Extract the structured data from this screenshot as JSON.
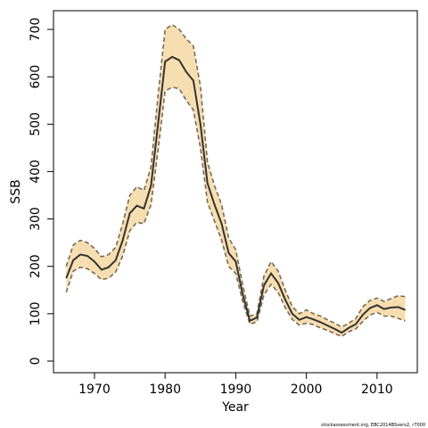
{
  "chart_data": {
    "type": "line",
    "xlabel": "Year",
    "ylabel": "SSB",
    "annotation": "stockassessment.org, EBC2014BSvers2, r7000",
    "x": [
      1966,
      1967,
      1968,
      1969,
      1970,
      1971,
      1972,
      1973,
      1974,
      1975,
      1976,
      1977,
      1978,
      1979,
      1980,
      1981,
      1982,
      1983,
      1984,
      1985,
      1986,
      1987,
      1988,
      1989,
      1990,
      1991,
      1992,
      1993,
      1994,
      1995,
      1996,
      1997,
      1998,
      1999,
      2000,
      2001,
      2002,
      2003,
      2004,
      2005,
      2006,
      2007,
      2008,
      2009,
      2010,
      2011,
      2012,
      2013,
      2014
    ],
    "values": [
      175,
      213,
      225,
      222,
      210,
      193,
      198,
      213,
      255,
      312,
      328,
      322,
      370,
      500,
      632,
      642,
      635,
      610,
      592,
      500,
      375,
      330,
      290,
      228,
      210,
      140,
      85,
      92,
      160,
      185,
      165,
      130,
      100,
      87,
      93,
      88,
      82,
      75,
      68,
      60,
      70,
      78,
      98,
      112,
      118,
      110,
      113,
      114,
      108
    ],
    "upper": [
      200,
      245,
      255,
      250,
      238,
      220,
      225,
      240,
      290,
      350,
      368,
      360,
      410,
      560,
      700,
      710,
      700,
      680,
      665,
      580,
      420,
      370,
      330,
      260,
      235,
      160,
      95,
      100,
      180,
      210,
      190,
      150,
      115,
      100,
      108,
      100,
      95,
      87,
      80,
      72,
      80,
      90,
      115,
      128,
      133,
      126,
      132,
      138,
      136
    ],
    "lower": [
      145,
      190,
      198,
      195,
      185,
      172,
      175,
      188,
      222,
      275,
      293,
      290,
      330,
      445,
      570,
      578,
      575,
      550,
      530,
      450,
      335,
      295,
      255,
      200,
      185,
      125,
      78,
      83,
      140,
      162,
      145,
      113,
      88,
      76,
      80,
      77,
      70,
      65,
      58,
      52,
      62,
      68,
      84,
      97,
      103,
      95,
      95,
      90,
      85
    ],
    "color": "#333333",
    "band_color": "#f7deb0",
    "bound_color": "#7a6a55",
    "xlim": [
      1964.2,
      2015.7
    ],
    "ylim": [
      -24.5,
      739.5
    ],
    "xticks": [
      1970,
      1980,
      1990,
      2000,
      2010
    ],
    "yticks": [
      0,
      100,
      200,
      300,
      400,
      500,
      600,
      700
    ]
  }
}
